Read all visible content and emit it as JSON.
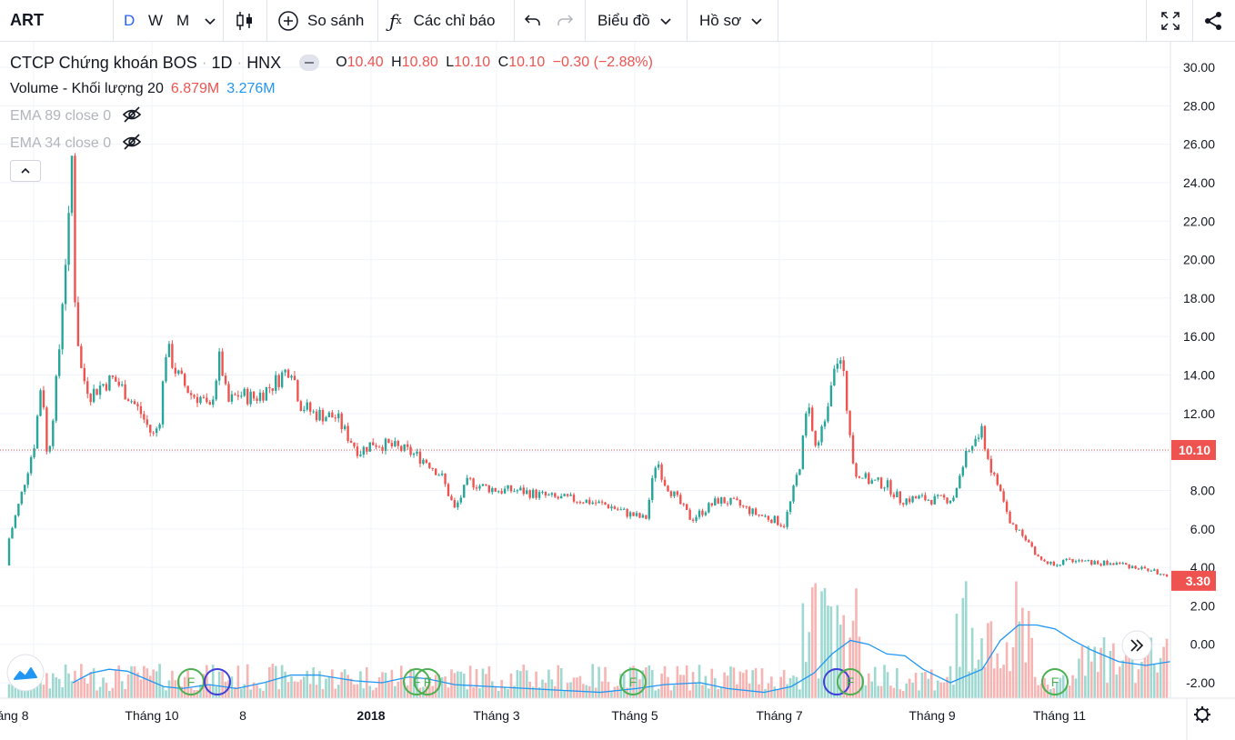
{
  "toolbar": {
    "symbol": "ART",
    "intervals": [
      "D",
      "W",
      "M"
    ],
    "compare_label": "So sánh",
    "indicators_label": "Các chỉ báo",
    "chart_label": "Biểu đồ",
    "profile_label": "Hồ sơ",
    "icons": [
      "chevron-down-icon",
      "candles-icon",
      "plus-circle-icon",
      "fx-icon",
      "undo-icon",
      "redo-icon",
      "fullscreen-icon",
      "share-icon"
    ]
  },
  "legend": {
    "title": "CTCP Chứng khoán BOS",
    "interval": "1D",
    "exchange": "HNX",
    "o_label": "O",
    "o_value": "10.40",
    "h_label": "H",
    "h_value": "10.80",
    "l_label": "L",
    "l_value": "10.10",
    "c_label": "C",
    "c_value": "10.10",
    "change": "−0.30 (−2.88%)",
    "volume_label": "Volume - Khối lượng 20",
    "volume_value": "6.879M",
    "volume_ma": "3.276M",
    "ema89": "EMA 89 close 0",
    "ema34": "EMA 34 close 0"
  },
  "colors": {
    "up": "#26a69a",
    "down": "#ef5350",
    "ma": "#2196f3",
    "dividend_marker": "#4caf50",
    "split_marker": "#3f3fd9"
  },
  "chart_data": {
    "type": "candlestick",
    "ylim": [
      -2.6,
      31
    ],
    "y_ticks": [
      "30.00",
      "28.00",
      "26.00",
      "24.00",
      "22.00",
      "20.00",
      "18.00",
      "16.00",
      "14.00",
      "12.00",
      "10.00",
      "8.00",
      "6.00",
      "4.00",
      "2.00",
      "0.00",
      "-2.00"
    ],
    "x_ticks": [
      "áng 8",
      "Tháng 10",
      "8",
      "2018",
      "Tháng 3",
      "Tháng 5",
      "Tháng 7",
      "Tháng 9",
      "Tháng 11"
    ],
    "price_label_current": "3.30",
    "price_label_line": "10.10",
    "line_value": 10.1,
    "current_value": 3.3,
    "events": [
      {
        "type": "F",
        "label": "F",
        "x": "Tháng 10"
      },
      {
        "type": "S",
        "label": "",
        "x": "Tháng 10"
      },
      {
        "type": "F",
        "label": "F",
        "x": "2018"
      },
      {
        "type": "F",
        "label": "F",
        "x": "2018"
      },
      {
        "type": "F",
        "label": "F",
        "x": "Tháng 5"
      },
      {
        "type": "S",
        "label": "",
        "x": "Tháng 7"
      },
      {
        "type": "F",
        "label": "F",
        "x": "Tháng 7"
      },
      {
        "type": "F",
        "label": "F",
        "x": "Tháng 11"
      }
    ],
    "anchors": [
      [
        0,
        4.1
      ],
      [
        10,
        5.5
      ],
      [
        22,
        7.5
      ],
      [
        38,
        10.5
      ],
      [
        46,
        14.0
      ],
      [
        52,
        9.5
      ],
      [
        56,
        11.0
      ],
      [
        64,
        14.5
      ],
      [
        70,
        19.0
      ],
      [
        76,
        22.0
      ],
      [
        79,
        25.3
      ],
      [
        83,
        17.0
      ],
      [
        90,
        14.0
      ],
      [
        100,
        13.0
      ],
      [
        112,
        13.5
      ],
      [
        125,
        13.8
      ],
      [
        140,
        13.0
      ],
      [
        155,
        12.0
      ],
      [
        168,
        10.8
      ],
      [
        175,
        11.5
      ],
      [
        183,
        15.5
      ],
      [
        195,
        14.0
      ],
      [
        210,
        13.0
      ],
      [
        222,
        12.8
      ],
      [
        230,
        12.0
      ],
      [
        242,
        15.0
      ],
      [
        250,
        12.5
      ],
      [
        262,
        13.0
      ],
      [
        280,
        12.8
      ],
      [
        300,
        13.5
      ],
      [
        320,
        14.5
      ],
      [
        330,
        12.5
      ],
      [
        345,
        12.0
      ],
      [
        370,
        11.8
      ],
      [
        380,
        11.0
      ],
      [
        395,
        10.0
      ],
      [
        410,
        10.5
      ],
      [
        430,
        10.3
      ],
      [
        450,
        10.0
      ],
      [
        470,
        9.5
      ],
      [
        485,
        8.8
      ],
      [
        500,
        7.0
      ],
      [
        515,
        8.5
      ],
      [
        530,
        8.2
      ],
      [
        550,
        8.0
      ],
      [
        570,
        8.0
      ],
      [
        590,
        7.8
      ],
      [
        610,
        7.6
      ],
      [
        640,
        7.5
      ],
      [
        670,
        7.2
      ],
      [
        690,
        6.8
      ],
      [
        710,
        6.5
      ],
      [
        722,
        9.7
      ],
      [
        730,
        8.5
      ],
      [
        745,
        7.5
      ],
      [
        760,
        6.5
      ],
      [
        775,
        7.0
      ],
      [
        790,
        7.5
      ],
      [
        810,
        7.3
      ],
      [
        830,
        6.8
      ],
      [
        850,
        6.5
      ],
      [
        862,
        6.2
      ],
      [
        870,
        7.5
      ],
      [
        880,
        9.5
      ],
      [
        888,
        12.5
      ],
      [
        898,
        10.0
      ],
      [
        908,
        12.0
      ],
      [
        918,
        15.0
      ],
      [
        926,
        14.5
      ],
      [
        932,
        12.0
      ],
      [
        940,
        9.0
      ],
      [
        955,
        8.5
      ],
      [
        975,
        8.3
      ],
      [
        990,
        7.5
      ],
      [
        1010,
        7.6
      ],
      [
        1030,
        7.5
      ],
      [
        1048,
        7.6
      ],
      [
        1060,
        9.5
      ],
      [
        1070,
        10.5
      ],
      [
        1080,
        11.0
      ],
      [
        1090,
        9.0
      ],
      [
        1100,
        8.0
      ],
      [
        1110,
        6.3
      ],
      [
        1125,
        5.8
      ],
      [
        1140,
        4.5
      ],
      [
        1155,
        4.2
      ],
      [
        1170,
        4.3
      ],
      [
        1190,
        4.3
      ],
      [
        1210,
        4.2
      ],
      [
        1230,
        4.2
      ],
      [
        1250,
        4.0
      ],
      [
        1270,
        3.8
      ],
      [
        1287,
        3.3
      ]
    ],
    "volume_ma_anchors": [
      [
        80,
        -2.0
      ],
      [
        100,
        -1.5
      ],
      [
        120,
        -1.3
      ],
      [
        140,
        -1.4
      ],
      [
        160,
        -1.8
      ],
      [
        180,
        -2.2
      ],
      [
        200,
        -2.3
      ],
      [
        230,
        -2.1
      ],
      [
        260,
        -2.3
      ],
      [
        290,
        -2.0
      ],
      [
        320,
        -1.6
      ],
      [
        350,
        -1.6
      ],
      [
        390,
        -1.9
      ],
      [
        420,
        -2.0
      ],
      [
        450,
        -1.7
      ],
      [
        470,
        -1.8
      ],
      [
        500,
        -2.1
      ],
      [
        540,
        -2.2
      ],
      [
        580,
        -2.3
      ],
      [
        620,
        -2.4
      ],
      [
        660,
        -2.5
      ],
      [
        700,
        -2.3
      ],
      [
        730,
        -2.1
      ],
      [
        770,
        -2.0
      ],
      [
        800,
        -2.3
      ],
      [
        840,
        -2.5
      ],
      [
        870,
        -2.2
      ],
      [
        895,
        -1.5
      ],
      [
        915,
        -0.5
      ],
      [
        935,
        0.2
      ],
      [
        955,
        0.0
      ],
      [
        975,
        -0.5
      ],
      [
        995,
        -0.6
      ],
      [
        1015,
        -1.3
      ],
      [
        1045,
        -2.0
      ],
      [
        1060,
        -1.7
      ],
      [
        1080,
        -1.3
      ],
      [
        1100,
        0.2
      ],
      [
        1120,
        1.0
      ],
      [
        1140,
        1.0
      ],
      [
        1160,
        0.8
      ],
      [
        1180,
        0.2
      ],
      [
        1200,
        -0.3
      ],
      [
        1230,
        -0.9
      ],
      [
        1260,
        -1.1
      ],
      [
        1287,
        -0.9
      ]
    ]
  }
}
